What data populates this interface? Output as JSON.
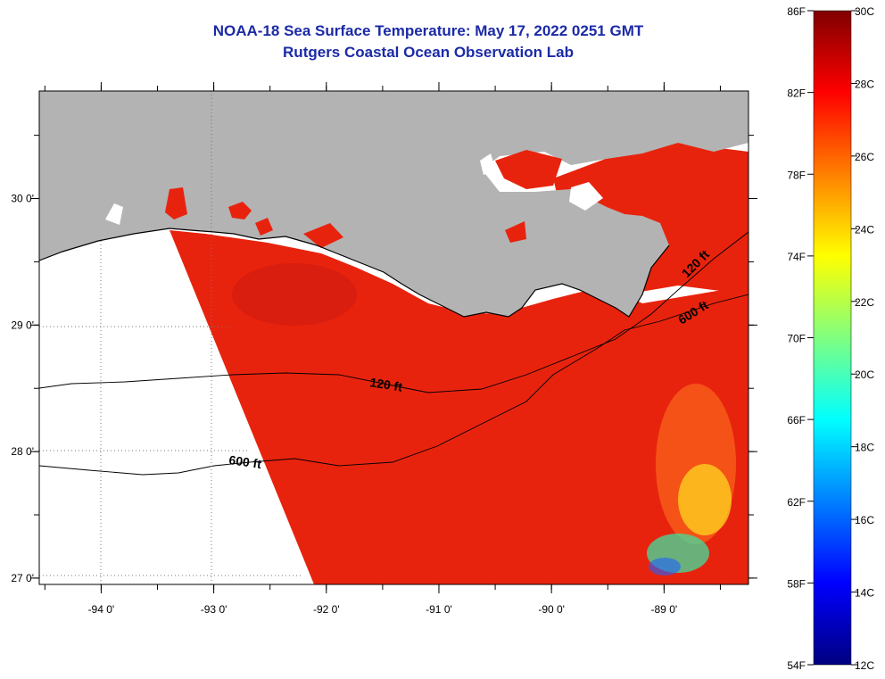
{
  "title": "NOAA-18 Sea Surface Temperature:  May 17, 2022 0251 GMT",
  "subtitle": "Rutgers Coastal Ocean Observation Lab",
  "map": {
    "lon_range": [
      -94.55,
      -88.25
    ],
    "lat_range": [
      26.95,
      30.85
    ],
    "lon_ticks": [
      {
        "value": -94,
        "label": "-94 0'"
      },
      {
        "value": -93,
        "label": "-93 0'"
      },
      {
        "value": -92,
        "label": "-92 0'"
      },
      {
        "value": -91,
        "label": "-91 0'"
      },
      {
        "value": -90,
        "label": "-90 0'"
      },
      {
        "value": -89,
        "label": "-89 0'"
      }
    ],
    "lat_ticks": [
      {
        "value": 30,
        "label": "30 0'"
      },
      {
        "value": 29,
        "label": "29 0'"
      },
      {
        "value": 28,
        "label": "28 0'"
      },
      {
        "value": 27,
        "label": "27 0'"
      }
    ],
    "contour_labels": [
      "120 ft",
      "600 ft",
      "120 ft",
      "600 ft"
    ],
    "land_color": "#b3b3b3",
    "no_data_color": "#ffffff",
    "water_color": "#e8230d"
  },
  "colorbar": {
    "f_labels": [
      "86F",
      "82F",
      "78F",
      "74F",
      "70F",
      "66F",
      "62F",
      "58F",
      "54F"
    ],
    "c_labels": [
      "30C",
      "28C",
      "26C",
      "24C",
      "22C",
      "20C",
      "18C",
      "16C",
      "14C",
      "12C"
    ],
    "f_range": [
      54,
      86
    ],
    "c_range": [
      12,
      30
    ],
    "colors": [
      "#000080",
      "#0000ff",
      "#0080ff",
      "#00ffff",
      "#80ff80",
      "#ffff00",
      "#ff8000",
      "#ff0000",
      "#800000"
    ]
  }
}
